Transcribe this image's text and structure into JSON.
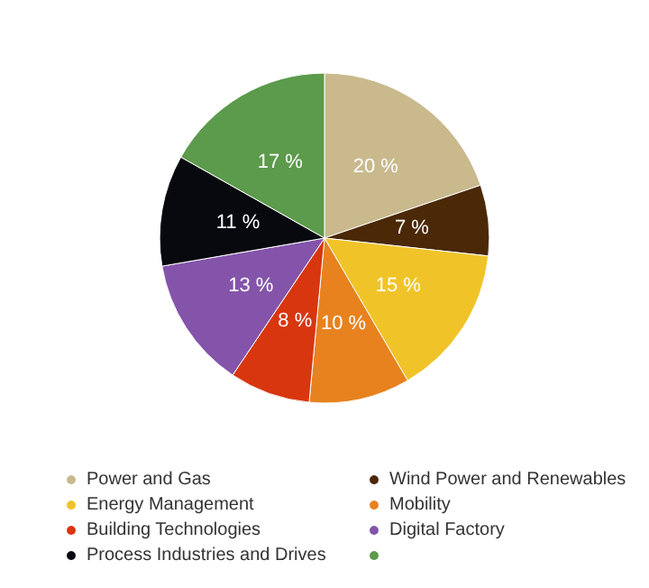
{
  "chart_data": {
    "type": "pie",
    "categories": [
      "Power and Gas",
      "Wind Power and Renewables",
      "Energy Management",
      "Mobility",
      "Building Technologies",
      "Digital Factory",
      "Process Industries and Drives",
      null
    ],
    "values": [
      20,
      7,
      15,
      10,
      8,
      13,
      11,
      17
    ],
    "value_labels": [
      "20 %",
      "7 %",
      "15 %",
      "10 %",
      "8 %",
      "13 %",
      "11 %",
      "17 %"
    ],
    "colors": [
      "#c9b98c",
      "#4b2806",
      "#f0c428",
      "#e8821e",
      "#d8360f",
      "#8454aa",
      "#07090f",
      "#5c9a4c"
    ],
    "legend": "bottom"
  }
}
